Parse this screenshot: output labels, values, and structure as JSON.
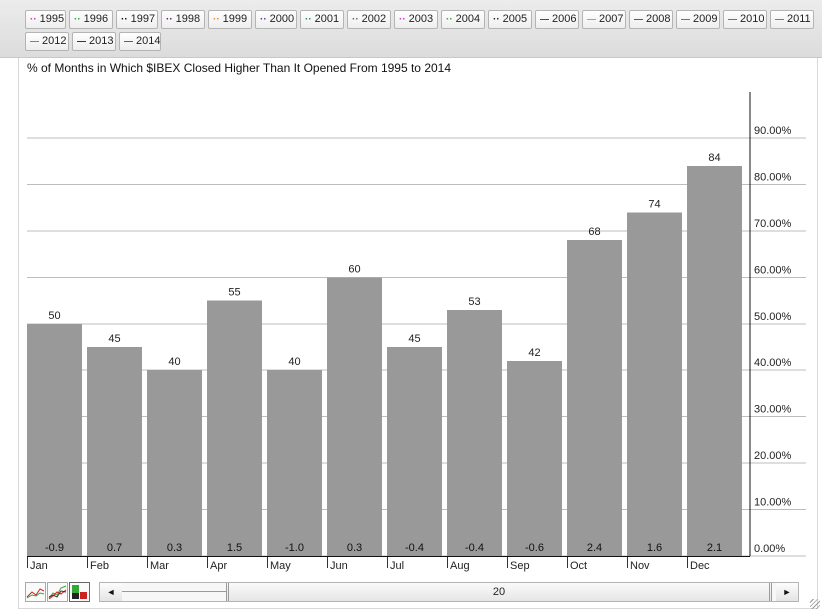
{
  "legend": [
    {
      "label": "1995",
      "color": "#cc33cc",
      "style": "dotted"
    },
    {
      "label": "1996",
      "color": "#33aa33",
      "style": "dotted"
    },
    {
      "label": "1997",
      "color": "#111111",
      "style": "dotted"
    },
    {
      "label": "1998",
      "color": "#552266",
      "style": "dotted"
    },
    {
      "label": "1999",
      "color": "#ee8822",
      "style": "dotted"
    },
    {
      "label": "2000",
      "color": "#663399",
      "style": "dotted"
    },
    {
      "label": "2001",
      "color": "#228877",
      "style": "dotted"
    },
    {
      "label": "2002",
      "color": "#666666",
      "style": "dotted"
    },
    {
      "label": "2003",
      "color": "#cc33cc",
      "style": "dotted"
    },
    {
      "label": "2004",
      "color": "#33aa33",
      "style": "dotted"
    },
    {
      "label": "2005",
      "color": "#222244",
      "style": "dotted"
    },
    {
      "label": "2006",
      "color": "#882211",
      "style": "solid"
    },
    {
      "label": "2007",
      "color": "#ee8822",
      "style": "solid"
    },
    {
      "label": "2008",
      "color": "#663399",
      "style": "solid"
    },
    {
      "label": "2009",
      "color": "#228877",
      "style": "solid"
    },
    {
      "label": "2010",
      "color": "#666666",
      "style": "solid"
    },
    {
      "label": "2011",
      "color": "#cc33cc",
      "style": "solid"
    },
    {
      "label": "2012",
      "color": "#33aa33",
      "style": "solid"
    },
    {
      "label": "2013",
      "color": "#222244",
      "style": "solid"
    },
    {
      "label": "2014",
      "color": "#cc2222",
      "style": "solid"
    }
  ],
  "chart_data": {
    "type": "bar",
    "title": "% of Months in Which $IBEX Closed Higher Than It Opened From 1995 to 2014",
    "categories": [
      "Jan",
      "Feb",
      "Mar",
      "Apr",
      "May",
      "Jun",
      "Jul",
      "Aug",
      "Sep",
      "Oct",
      "Nov",
      "Dec"
    ],
    "series": [
      {
        "values": [
          50,
          45,
          40,
          55,
          40,
          60,
          45,
          53,
          42,
          68,
          74,
          84
        ]
      }
    ],
    "bar_bottom_labels": [
      "-0.9",
      "0.7",
      "0.3",
      "1.5",
      "-1.0",
      "0.3",
      "-0.4",
      "-0.4",
      "-0.6",
      "2.4",
      "1.6",
      "2.1"
    ],
    "y_ticks": [
      "0.00%",
      "10.00%",
      "20.00%",
      "30.00%",
      "40.00%",
      "50.00%",
      "60.00%",
      "70.00%",
      "80.00%",
      "90.00%"
    ],
    "ylim": [
      0,
      100
    ],
    "y_axis_side": "right",
    "grid": true,
    "bar_color": "#999999"
  },
  "controls": {
    "period_value": "20",
    "left_arrow": "◄",
    "right_arrow": "►"
  }
}
